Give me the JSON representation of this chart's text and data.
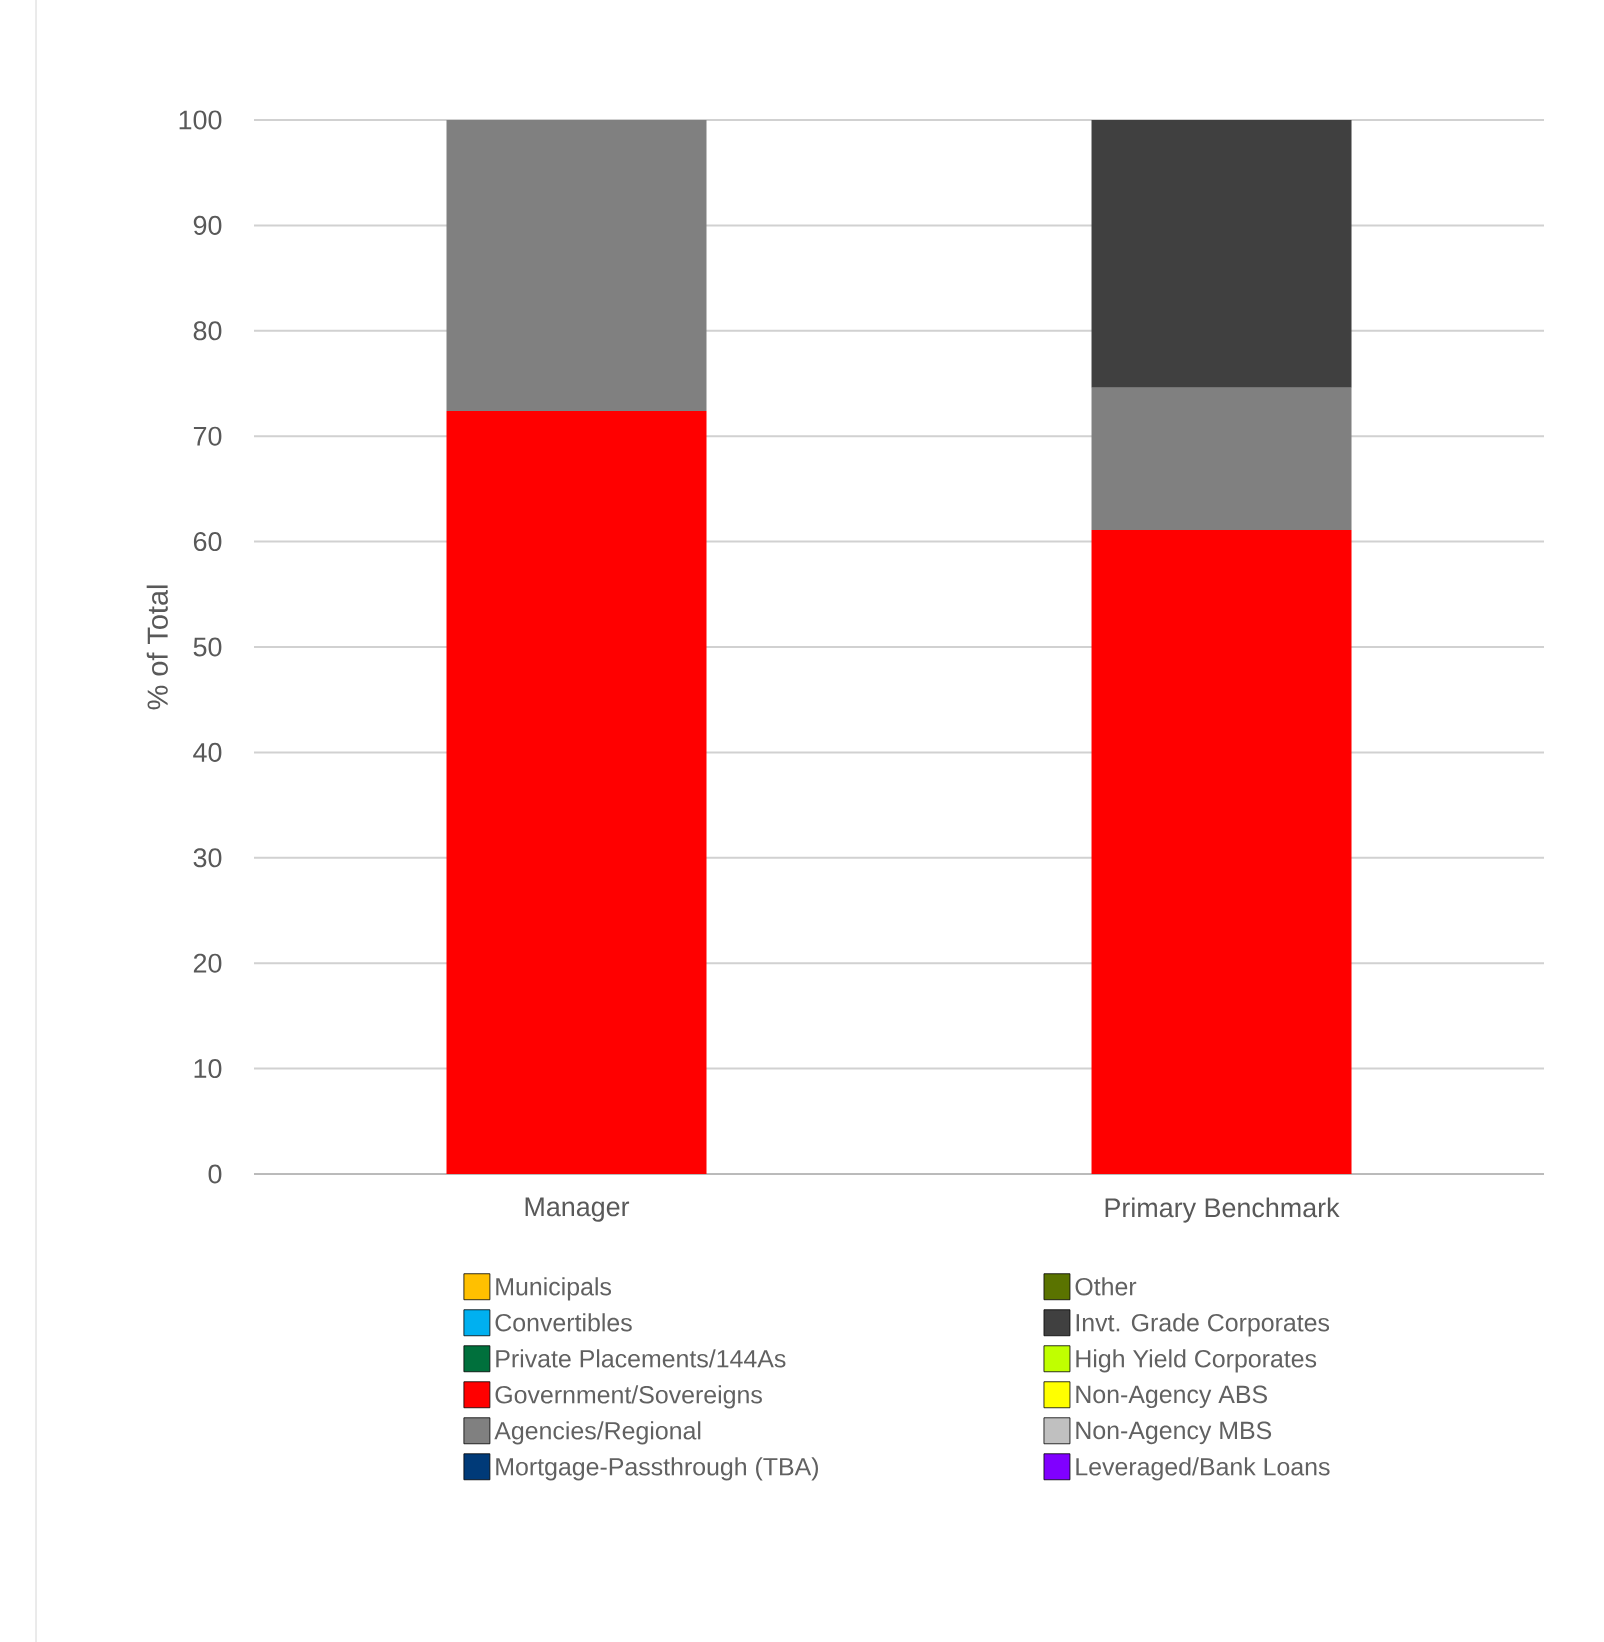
{
  "chart_data": {
    "type": "bar",
    "stacked": true,
    "ylabel": "% of Total",
    "categories": [
      "Manager",
      "Primary Benchmark"
    ],
    "ylim": [
      0,
      100
    ],
    "yticks": [
      0,
      10,
      20,
      30,
      40,
      50,
      60,
      70,
      80,
      90,
      100
    ],
    "grid": "y",
    "legend": "bottom",
    "series": [
      {
        "name": "Municipals",
        "color": "#ffc000",
        "values": [
          0,
          0
        ]
      },
      {
        "name": "Convertibles",
        "color": "#00b0f0",
        "values": [
          0,
          0
        ]
      },
      {
        "name": "Private Placements/144As",
        "color": "#00703c",
        "values": [
          0,
          0
        ]
      },
      {
        "name": "Government/Sovereigns",
        "color": "#ff0000",
        "values": [
          72.4,
          61.1
        ]
      },
      {
        "name": "Agencies/Regional",
        "color": "#808080",
        "values": [
          27.6,
          13.5
        ]
      },
      {
        "name": "Mortgage-Passthrough (TBA)",
        "color": "#003a78",
        "values": [
          0,
          0
        ]
      },
      {
        "name": "Other",
        "color": "#5a7300",
        "values": [
          0,
          0
        ]
      },
      {
        "name": "Invt. Grade Corporates",
        "color": "#404040",
        "values": [
          0,
          25.4
        ]
      },
      {
        "name": "High Yield Corporates",
        "color": "#c0ff00",
        "values": [
          0,
          0
        ]
      },
      {
        "name": "Non-Agency ABS",
        "color": "#ffff00",
        "values": [
          0,
          0
        ]
      },
      {
        "name": "Non-Agency MBS",
        "color": "#c0c0c0",
        "values": [
          0,
          0
        ]
      },
      {
        "name": "Leveraged/Bank Loans",
        "color": "#8000ff",
        "values": [
          0,
          0
        ]
      }
    ]
  }
}
